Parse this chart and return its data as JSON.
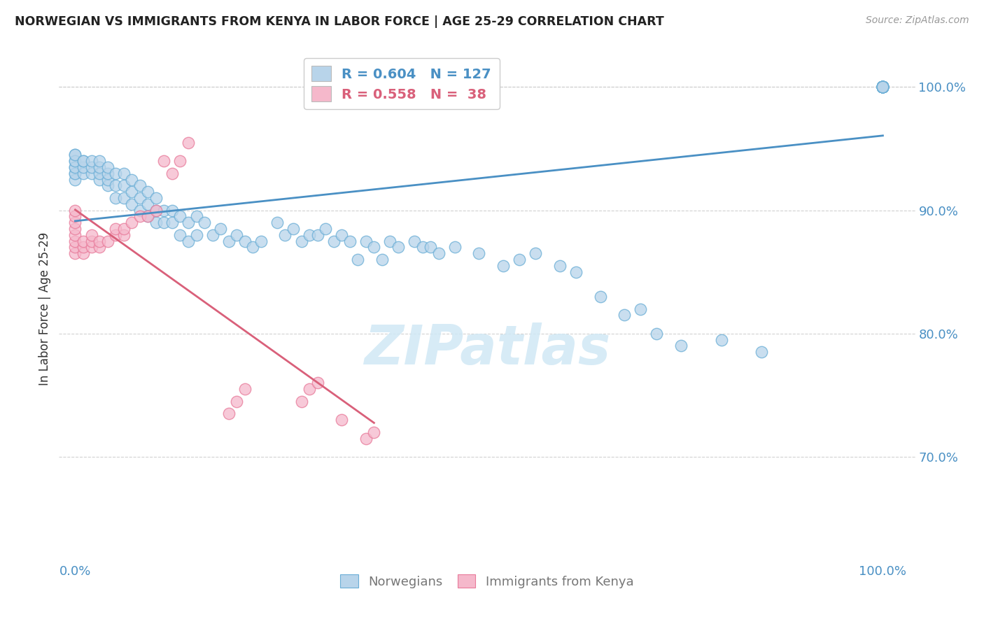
{
  "title": "NORWEGIAN VS IMMIGRANTS FROM KENYA IN LABOR FORCE | AGE 25-29 CORRELATION CHART",
  "source": "Source: ZipAtlas.com",
  "ylabel": "In Labor Force | Age 25-29",
  "xlim": [
    -0.02,
    1.04
  ],
  "ylim": [
    0.615,
    1.025
  ],
  "yticks": [
    0.7,
    0.8,
    0.9,
    1.0
  ],
  "ytick_labels": [
    "70.0%",
    "80.0%",
    "90.0%",
    "100.0%"
  ],
  "xtick_labels": [
    "0.0%",
    "100.0%"
  ],
  "norwegian_R": 0.604,
  "norwegian_N": 127,
  "kenya_R": 0.558,
  "kenya_N": 38,
  "norwegian_color": "#b8d4ea",
  "kenya_color": "#f5b8cb",
  "norwegian_edge_color": "#6aaed6",
  "kenya_edge_color": "#e87a9a",
  "norwegian_line_color": "#4a90c4",
  "kenya_line_color": "#d9607a",
  "watermark_color": "#d0e8f5",
  "background_color": "#ffffff",
  "nor_x": [
    0.0,
    0.0,
    0.0,
    0.0,
    0.0,
    0.0,
    0.0,
    0.0,
    0.0,
    0.01,
    0.01,
    0.01,
    0.01,
    0.02,
    0.02,
    0.02,
    0.03,
    0.03,
    0.03,
    0.03,
    0.04,
    0.04,
    0.04,
    0.04,
    0.05,
    0.05,
    0.05,
    0.06,
    0.06,
    0.06,
    0.07,
    0.07,
    0.07,
    0.08,
    0.08,
    0.08,
    0.09,
    0.09,
    0.09,
    0.1,
    0.1,
    0.1,
    0.11,
    0.11,
    0.12,
    0.12,
    0.13,
    0.13,
    0.14,
    0.14,
    0.15,
    0.15,
    0.16,
    0.17,
    0.18,
    0.19,
    0.2,
    0.21,
    0.22,
    0.23,
    0.25,
    0.26,
    0.27,
    0.28,
    0.29,
    0.3,
    0.31,
    0.32,
    0.33,
    0.34,
    0.35,
    0.36,
    0.37,
    0.38,
    0.39,
    0.4,
    0.42,
    0.43,
    0.44,
    0.45,
    0.47,
    0.5,
    0.53,
    0.55,
    0.57,
    0.6,
    0.62,
    0.65,
    0.68,
    0.7,
    0.72,
    0.75,
    0.8,
    0.85,
    1.0,
    1.0,
    1.0,
    1.0,
    1.0,
    1.0,
    1.0,
    1.0,
    1.0,
    1.0,
    1.0,
    1.0,
    1.0,
    1.0,
    1.0,
    1.0,
    1.0,
    1.0,
    1.0,
    1.0,
    1.0,
    1.0,
    1.0,
    1.0,
    1.0,
    1.0,
    1.0,
    1.0,
    1.0,
    1.0,
    1.0,
    1.0,
    1.0
  ],
  "nor_y": [
    0.93,
    0.935,
    0.94,
    0.945,
    0.925,
    0.93,
    0.935,
    0.94,
    0.945,
    0.93,
    0.935,
    0.94,
    0.94,
    0.93,
    0.935,
    0.94,
    0.925,
    0.93,
    0.935,
    0.94,
    0.92,
    0.925,
    0.93,
    0.935,
    0.91,
    0.92,
    0.93,
    0.91,
    0.92,
    0.93,
    0.905,
    0.915,
    0.925,
    0.9,
    0.91,
    0.92,
    0.895,
    0.905,
    0.915,
    0.89,
    0.9,
    0.91,
    0.89,
    0.9,
    0.89,
    0.9,
    0.88,
    0.895,
    0.875,
    0.89,
    0.88,
    0.895,
    0.89,
    0.88,
    0.885,
    0.875,
    0.88,
    0.875,
    0.87,
    0.875,
    0.89,
    0.88,
    0.885,
    0.875,
    0.88,
    0.88,
    0.885,
    0.875,
    0.88,
    0.875,
    0.86,
    0.875,
    0.87,
    0.86,
    0.875,
    0.87,
    0.875,
    0.87,
    0.87,
    0.865,
    0.87,
    0.865,
    0.855,
    0.86,
    0.865,
    0.855,
    0.85,
    0.83,
    0.815,
    0.82,
    0.8,
    0.79,
    0.795,
    0.785,
    1.0,
    1.0,
    1.0,
    1.0,
    1.0,
    1.0,
    1.0,
    1.0,
    1.0,
    1.0,
    1.0,
    1.0,
    1.0,
    1.0,
    1.0,
    1.0,
    1.0,
    1.0,
    1.0,
    1.0,
    1.0,
    1.0,
    1.0,
    1.0,
    1.0,
    1.0,
    1.0,
    1.0,
    1.0,
    1.0,
    1.0,
    1.0,
    1.0
  ],
  "ken_x": [
    0.0,
    0.0,
    0.0,
    0.0,
    0.0,
    0.0,
    0.0,
    0.0,
    0.01,
    0.01,
    0.01,
    0.02,
    0.02,
    0.02,
    0.03,
    0.03,
    0.04,
    0.05,
    0.05,
    0.06,
    0.06,
    0.07,
    0.08,
    0.09,
    0.1,
    0.11,
    0.12,
    0.13,
    0.14,
    0.19,
    0.2,
    0.21,
    0.28,
    0.29,
    0.3,
    0.33,
    0.36,
    0.37
  ],
  "ken_y": [
    0.865,
    0.87,
    0.875,
    0.88,
    0.885,
    0.89,
    0.895,
    0.9,
    0.865,
    0.87,
    0.875,
    0.87,
    0.875,
    0.88,
    0.87,
    0.875,
    0.875,
    0.88,
    0.885,
    0.88,
    0.885,
    0.89,
    0.895,
    0.895,
    0.9,
    0.94,
    0.93,
    0.94,
    0.955,
    0.735,
    0.745,
    0.755,
    0.745,
    0.755,
    0.76,
    0.73,
    0.715,
    0.72
  ]
}
